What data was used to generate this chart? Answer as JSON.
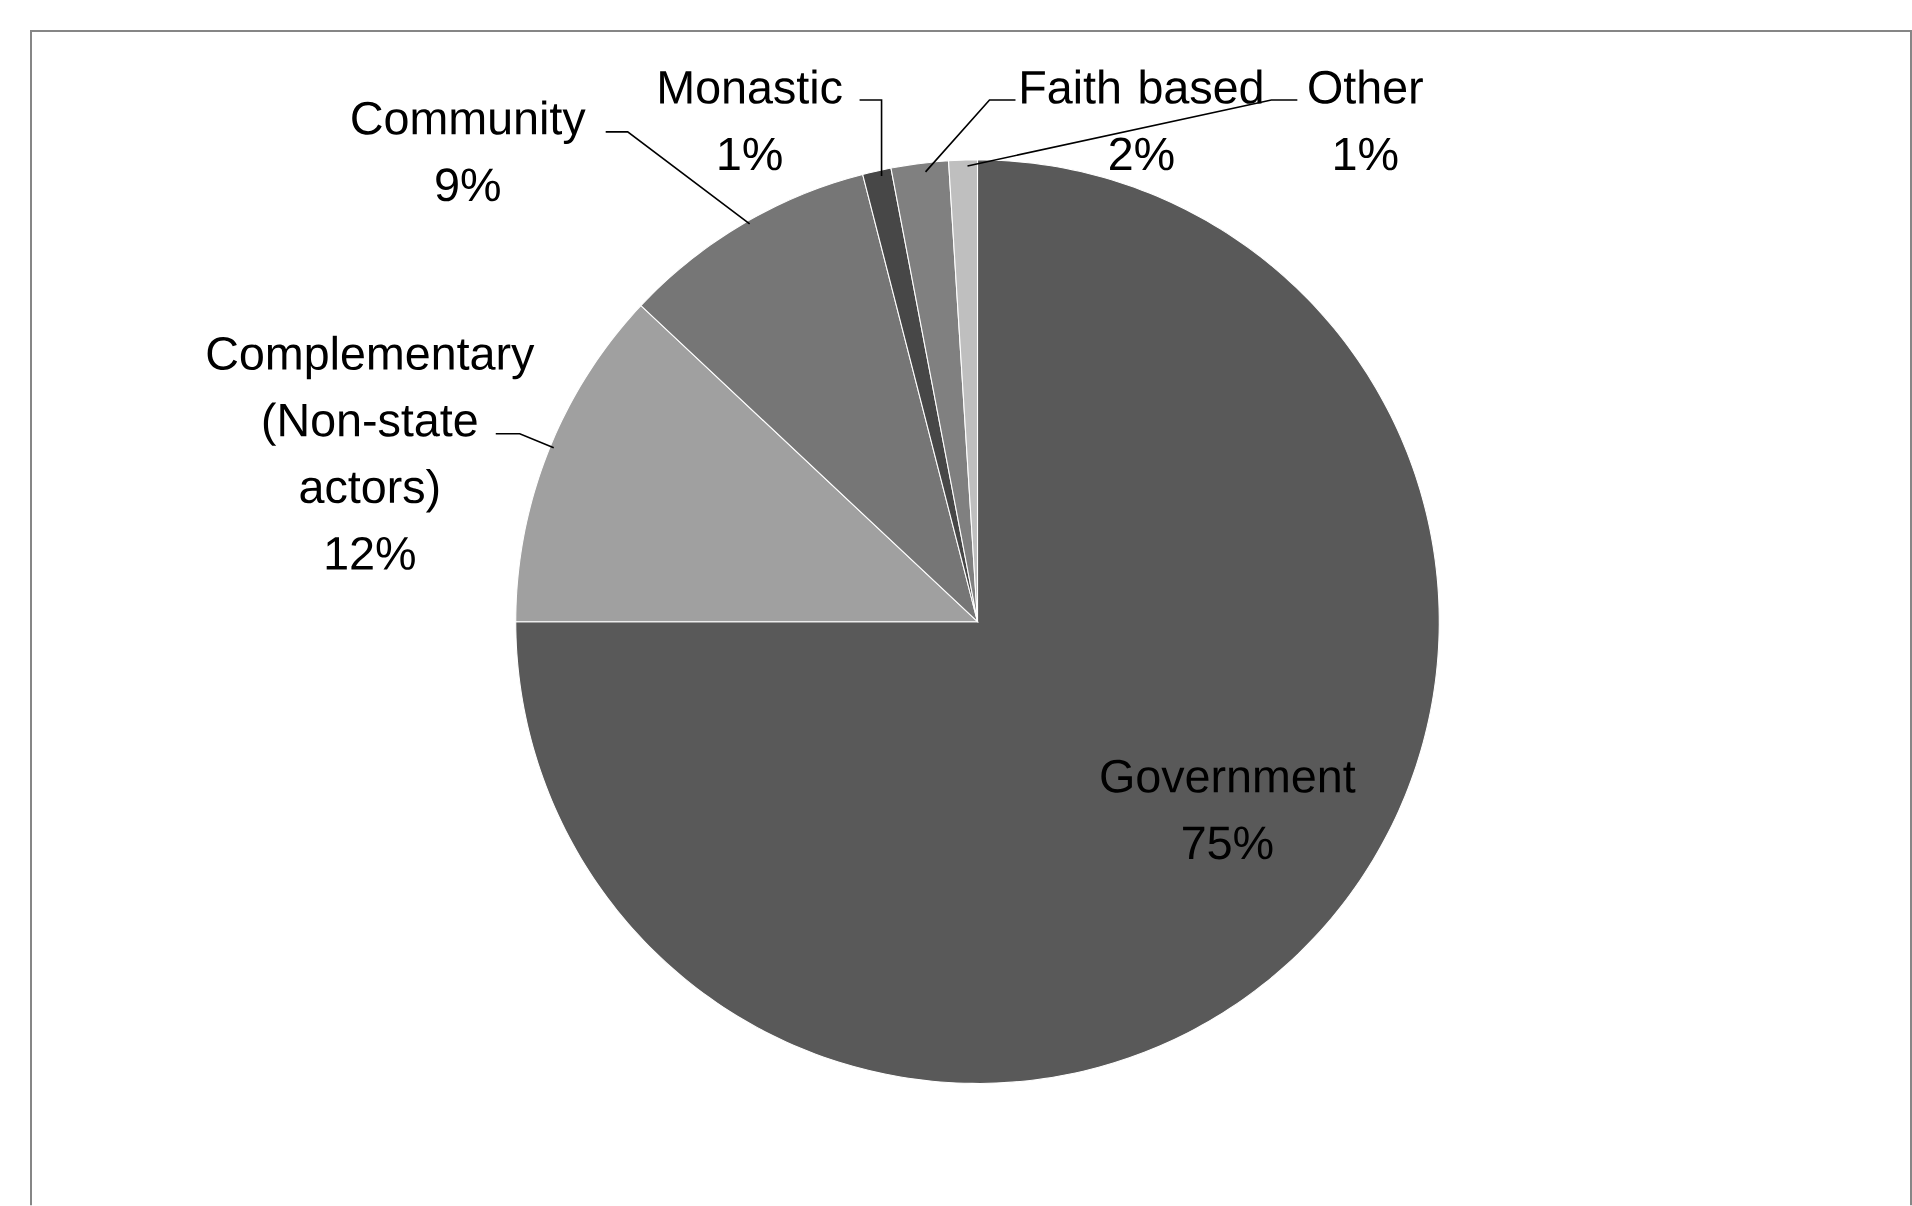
{
  "chart_data": {
    "type": "pie",
    "categories": [
      "Government",
      "Complementary (Non-state actors)",
      "Community",
      "Monastic",
      "Faith based",
      "Other"
    ],
    "values": [
      75,
      12,
      9,
      1,
      2,
      1
    ],
    "colors": [
      "#595959",
      "#a0a0a0",
      "#767676",
      "#474747",
      "#808080",
      "#bfbfbf"
    ],
    "value_labels": [
      "75%",
      "12%",
      "9%",
      "1%",
      "2%",
      "1%"
    ]
  }
}
